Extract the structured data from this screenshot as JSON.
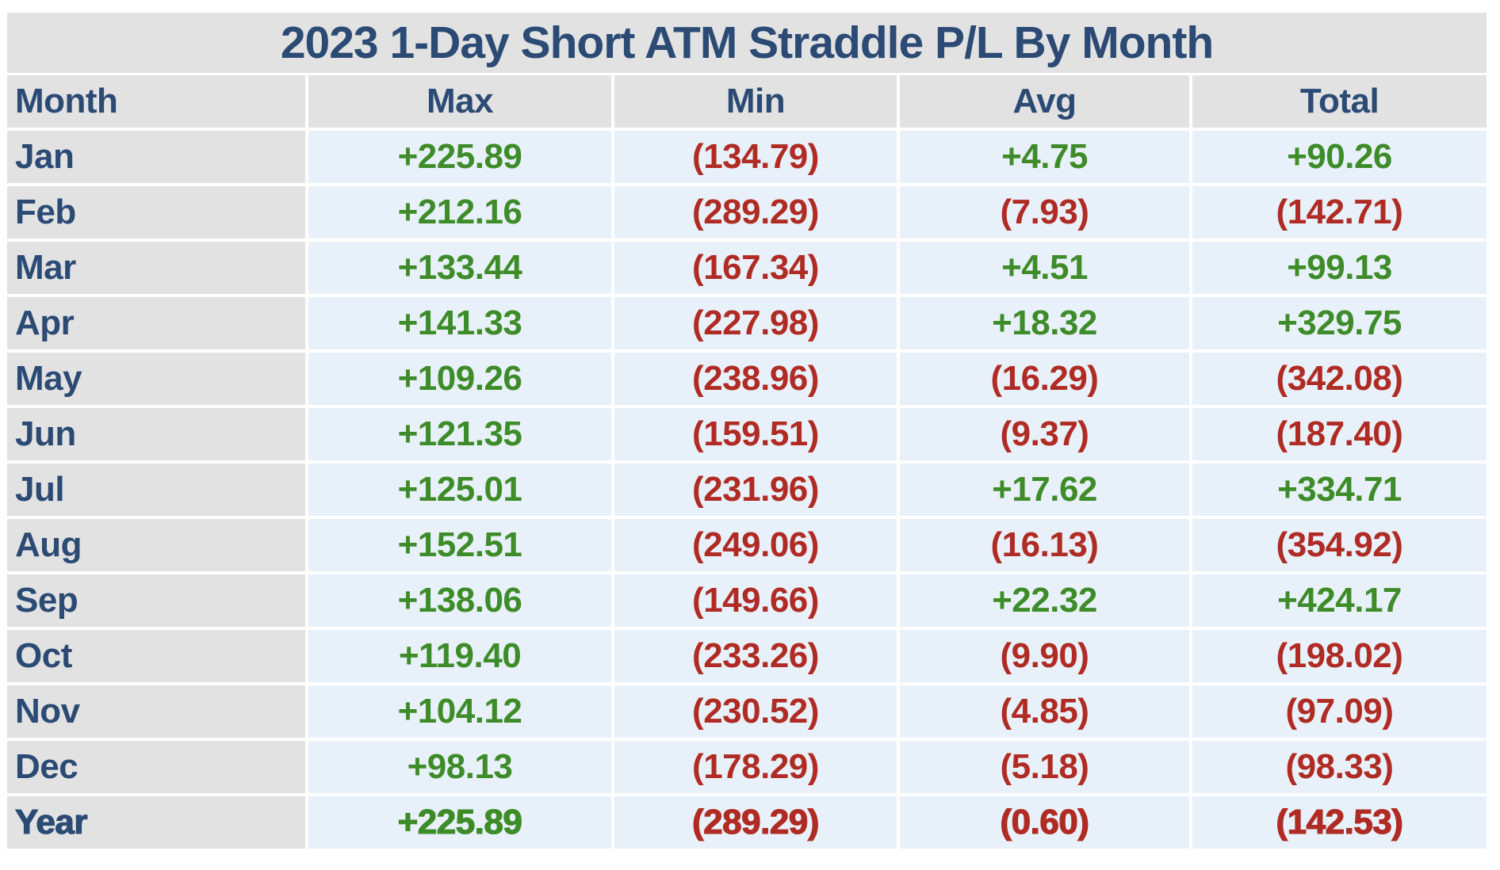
{
  "title": "2023 1-Day Short ATM Straddle P/L By Month",
  "columns": [
    "Month",
    "Max",
    "Min",
    "Avg",
    "Total"
  ],
  "colors": {
    "navy": "#2b4a74",
    "green": "#3e8c29",
    "red": "#b02b24",
    "band_gray": "#e2e2e2",
    "cell_blue": "#e8f1f9"
  },
  "rows": [
    {
      "month": "Jan",
      "max": "+225.89",
      "min": "(134.79)",
      "avg": "+4.75",
      "total": "+90.26"
    },
    {
      "month": "Feb",
      "max": "+212.16",
      "min": "(289.29)",
      "avg": "(7.93)",
      "total": "(142.71)"
    },
    {
      "month": "Mar",
      "max": "+133.44",
      "min": "(167.34)",
      "avg": "+4.51",
      "total": "+99.13"
    },
    {
      "month": "Apr",
      "max": "+141.33",
      "min": "(227.98)",
      "avg": "+18.32",
      "total": "+329.75"
    },
    {
      "month": "May",
      "max": "+109.26",
      "min": "(238.96)",
      "avg": "(16.29)",
      "total": "(342.08)"
    },
    {
      "month": "Jun",
      "max": "+121.35",
      "min": "(159.51)",
      "avg": "(9.37)",
      "total": "(187.40)"
    },
    {
      "month": "Jul",
      "max": "+125.01",
      "min": "(231.96)",
      "avg": "+17.62",
      "total": "+334.71"
    },
    {
      "month": "Aug",
      "max": "+152.51",
      "min": "(249.06)",
      "avg": "(16.13)",
      "total": "(354.92)"
    },
    {
      "month": "Sep",
      "max": "+138.06",
      "min": "(149.66)",
      "avg": "+22.32",
      "total": "+424.17"
    },
    {
      "month": "Oct",
      "max": "+119.40",
      "min": "(233.26)",
      "avg": "(9.90)",
      "total": "(198.02)"
    },
    {
      "month": "Nov",
      "max": "+104.12",
      "min": "(230.52)",
      "avg": "(4.85)",
      "total": "(97.09)"
    },
    {
      "month": "Dec",
      "max": "+98.13",
      "min": "(178.29)",
      "avg": "(5.18)",
      "total": "(98.33)"
    },
    {
      "month": "Year",
      "max": "+225.89",
      "min": "(289.29)",
      "avg": "(0.60)",
      "total": "(142.53)"
    }
  ],
  "chart_data": {
    "type": "table",
    "title": "2023 1-Day Short ATM Straddle P/L By Month",
    "columns": [
      "Month",
      "Max",
      "Min",
      "Avg",
      "Total"
    ],
    "rows": [
      [
        "Jan",
        225.89,
        -134.79,
        4.75,
        90.26
      ],
      [
        "Feb",
        212.16,
        -289.29,
        -7.93,
        -142.71
      ],
      [
        "Mar",
        133.44,
        -167.34,
        4.51,
        99.13
      ],
      [
        "Apr",
        141.33,
        -227.98,
        18.32,
        329.75
      ],
      [
        "May",
        109.26,
        -238.96,
        -16.29,
        -342.08
      ],
      [
        "Jun",
        121.35,
        -159.51,
        -9.37,
        -187.4
      ],
      [
        "Jul",
        125.01,
        -231.96,
        17.62,
        334.71
      ],
      [
        "Aug",
        152.51,
        -249.06,
        -16.13,
        -354.92
      ],
      [
        "Sep",
        138.06,
        -149.66,
        22.32,
        424.17
      ],
      [
        "Oct",
        119.4,
        -233.26,
        -9.9,
        -198.02
      ],
      [
        "Nov",
        104.12,
        -230.52,
        -4.85,
        -97.09
      ],
      [
        "Dec",
        98.13,
        -178.29,
        -5.18,
        -98.33
      ],
      [
        "Year",
        225.89,
        -289.29,
        -0.6,
        -142.53
      ]
    ],
    "notes": "Negative values are shown in parentheses in red; positive values with + prefix in green."
  }
}
